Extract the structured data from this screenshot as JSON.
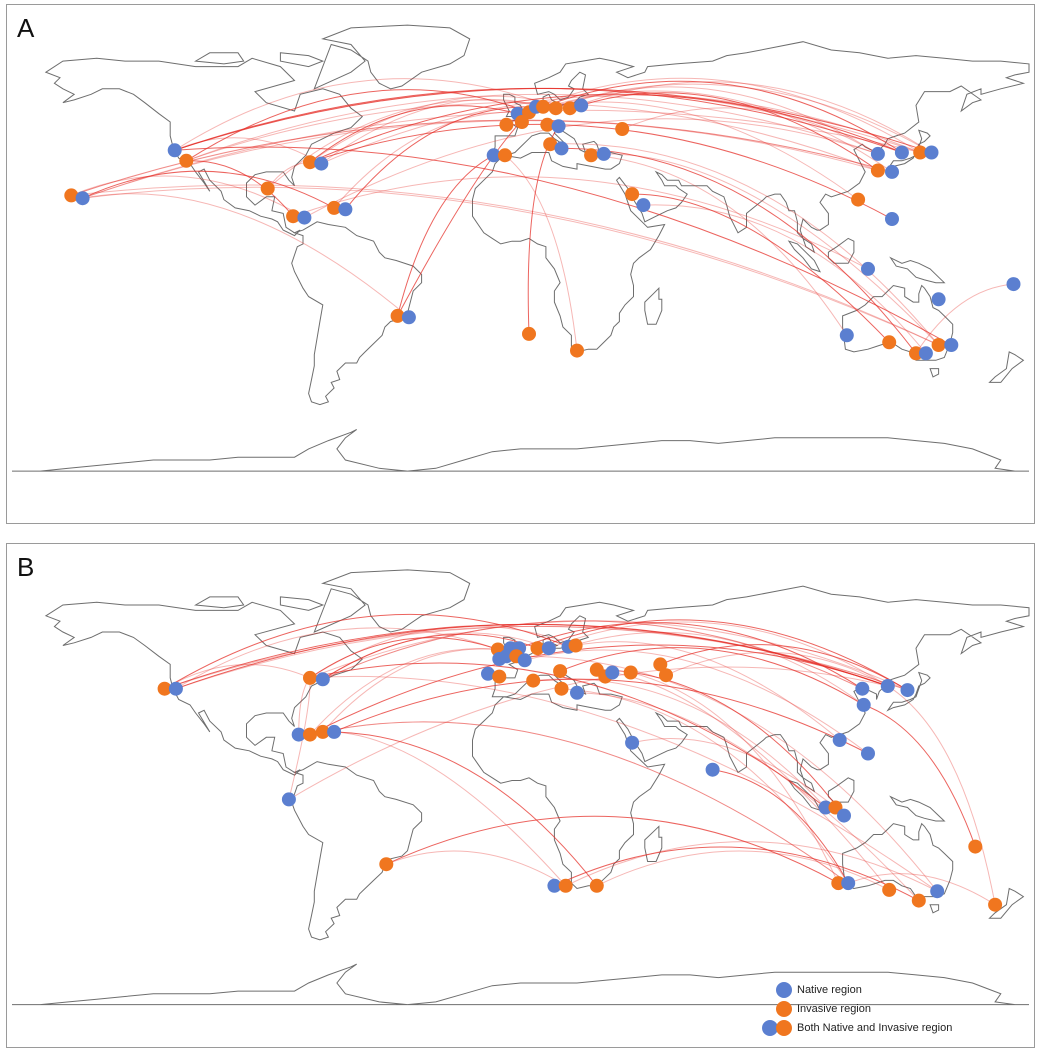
{
  "colors": {
    "native": "#5b7fd0",
    "invasive": "#f0761f",
    "route": "#e6302a",
    "land": "#6e6e6e",
    "border": "#9a9a9a"
  },
  "panels": [
    {
      "label": "A",
      "points": [
        {
          "lon": -122.4,
          "lat": 37.8,
          "type": "native"
        },
        {
          "lon": -118.3,
          "lat": 34.0,
          "type": "invasive"
        },
        {
          "lon": -159.0,
          "lat": 21.5,
          "type": "invasive"
        },
        {
          "lon": -155.0,
          "lat": 20.5,
          "type": "native"
        },
        {
          "lon": -89.5,
          "lat": 24.0,
          "type": "invasive"
        },
        {
          "lon": -80.5,
          "lat": 14.0,
          "type": "invasive"
        },
        {
          "lon": -76.5,
          "lat": 13.5,
          "type": "native"
        },
        {
          "lon": -66.0,
          "lat": 17.0,
          "type": "invasive"
        },
        {
          "lon": -62.0,
          "lat": 16.5,
          "type": "native"
        },
        {
          "lon": -74.5,
          "lat": 33.5,
          "type": "invasive"
        },
        {
          "lon": -70.5,
          "lat": 33.0,
          "type": "native"
        },
        {
          "lon": -43.5,
          "lat": -22.0,
          "type": "invasive"
        },
        {
          "lon": -39.5,
          "lat": -22.5,
          "type": "native"
        },
        {
          "lon": -9.5,
          "lat": 36.0,
          "type": "native"
        },
        {
          "lon": -5.5,
          "lat": 36.0,
          "type": "invasive"
        },
        {
          "lon": -5.0,
          "lat": 47.0,
          "type": "invasive"
        },
        {
          "lon": -1.0,
          "lat": 51.0,
          "type": "native"
        },
        {
          "lon": 0.5,
          "lat": 48.0,
          "type": "invasive"
        },
        {
          "lon": 3.0,
          "lat": 51.5,
          "type": "invasive"
        },
        {
          "lon": 5.5,
          "lat": 53.5,
          "type": "native"
        },
        {
          "lon": 8.0,
          "lat": 53.5,
          "type": "invasive"
        },
        {
          "lon": 9.5,
          "lat": 47.0,
          "type": "invasive"
        },
        {
          "lon": 12.5,
          "lat": 53.0,
          "type": "invasive"
        },
        {
          "lon": 17.5,
          "lat": 53.0,
          "type": "invasive"
        },
        {
          "lon": 21.5,
          "lat": 54.0,
          "type": "native"
        },
        {
          "lon": 13.5,
          "lat": 46.5,
          "type": "native"
        },
        {
          "lon": 10.5,
          "lat": 40.0,
          "type": "invasive"
        },
        {
          "lon": 14.5,
          "lat": 38.5,
          "type": "native"
        },
        {
          "lon": 25.0,
          "lat": 36.0,
          "type": "invasive"
        },
        {
          "lon": 29.5,
          "lat": 36.5,
          "type": "native"
        },
        {
          "lon": 36.0,
          "lat": 45.5,
          "type": "invasive"
        },
        {
          "lon": 39.5,
          "lat": 22.0,
          "type": "invasive"
        },
        {
          "lon": 43.5,
          "lat": 18.0,
          "type": "native"
        },
        {
          "lon": 3.0,
          "lat": -28.5,
          "type": "invasive"
        },
        {
          "lon": 20.0,
          "lat": -34.5,
          "type": "invasive"
        },
        {
          "lon": 119.5,
          "lat": 20.0,
          "type": "invasive"
        },
        {
          "lon": 126.5,
          "lat": 36.5,
          "type": "native"
        },
        {
          "lon": 126.5,
          "lat": 30.5,
          "type": "invasive"
        },
        {
          "lon": 131.5,
          "lat": 30.0,
          "type": "native"
        },
        {
          "lon": 135.0,
          "lat": 37.0,
          "type": "native"
        },
        {
          "lon": 141.5,
          "lat": 37.0,
          "type": "invasive"
        },
        {
          "lon": 145.5,
          "lat": 37.0,
          "type": "native"
        },
        {
          "lon": 131.5,
          "lat": 13.0,
          "type": "native"
        },
        {
          "lon": 123.0,
          "lat": -5.0,
          "type": "native"
        },
        {
          "lon": 148.0,
          "lat": -16.0,
          "type": "native"
        },
        {
          "lon": 115.5,
          "lat": -29.0,
          "type": "native"
        },
        {
          "lon": 130.5,
          "lat": -31.5,
          "type": "invasive"
        },
        {
          "lon": 140.0,
          "lat": -35.5,
          "type": "invasive"
        },
        {
          "lon": 143.5,
          "lat": -35.5,
          "type": "native"
        },
        {
          "lon": 148.0,
          "lat": -32.5,
          "type": "invasive"
        },
        {
          "lon": 152.5,
          "lat": -32.5,
          "type": "native"
        },
        {
          "lon": 174.5,
          "lat": -10.5,
          "type": "native"
        }
      ],
      "routes": [
        [
          -122.4,
          37.8,
          135.0,
          37.0
        ],
        [
          -122.4,
          37.8,
          141.5,
          37.0
        ],
        [
          -118.3,
          34.0,
          126.5,
          36.5
        ],
        [
          -118.3,
          34.0,
          3.0,
          51.5
        ],
        [
          -122.4,
          37.8,
          12.5,
          53.0
        ],
        [
          -70.5,
          33.0,
          8.0,
          53.5
        ],
        [
          -74.5,
          33.5,
          -1.0,
          51.0
        ],
        [
          -74.5,
          33.5,
          17.5,
          53.0
        ],
        [
          -70.5,
          33.0,
          141.5,
          37.0
        ],
        [
          -74.5,
          33.5,
          135.0,
          37.0
        ],
        [
          -66.0,
          17.0,
          3.0,
          51.5
        ],
        [
          -159.0,
          21.5,
          -76.5,
          13.5
        ],
        [
          -155.0,
          20.5,
          -66.0,
          17.0
        ],
        [
          -155.0,
          20.5,
          126.5,
          30.5
        ],
        [
          -159.0,
          21.5,
          131.5,
          30.0
        ],
        [
          -43.5,
          -22.0,
          5.5,
          53.5
        ],
        [
          -39.5,
          -22.5,
          -155.0,
          20.5
        ],
        [
          5.5,
          53.5,
          141.5,
          37.0
        ],
        [
          8.0,
          53.5,
          135.0,
          37.0
        ],
        [
          12.5,
          53.0,
          126.5,
          36.5
        ],
        [
          17.5,
          53.0,
          145.5,
          37.0
        ],
        [
          21.5,
          54.0,
          126.5,
          30.5
        ],
        [
          3.0,
          51.5,
          131.5,
          30.0
        ],
        [
          -1.0,
          51.0,
          119.5,
          20.0
        ],
        [
          14.5,
          38.5,
          140.0,
          -35.5
        ],
        [
          29.5,
          36.5,
          148.0,
          -32.5
        ],
        [
          25.0,
          36.0,
          115.5,
          -29.0
        ],
        [
          39.5,
          22.0,
          130.5,
          -31.5
        ],
        [
          43.5,
          18.0,
          143.5,
          -35.5
        ],
        [
          20.0,
          -34.5,
          -5.5,
          36.0
        ],
        [
          3.0,
          -28.5,
          13.5,
          46.5
        ],
        [
          126.5,
          30.5,
          -118.3,
          34.0
        ],
        [
          131.5,
          30.0,
          -159.0,
          21.5
        ],
        [
          145.5,
          37.0,
          -122.4,
          37.8
        ],
        [
          141.5,
          37.0,
          -155.0,
          20.5
        ],
        [
          148.0,
          -32.5,
          -159.0,
          21.5
        ],
        [
          152.5,
          -32.5,
          -122.4,
          37.8
        ],
        [
          174.5,
          -10.5,
          140.0,
          -35.5
        ],
        [
          123.0,
          -5.0,
          -80.5,
          14.0
        ],
        [
          131.5,
          13.0,
          -74.5,
          33.5
        ],
        [
          -89.5,
          24.0,
          8.0,
          53.5
        ],
        [
          -76.5,
          13.5,
          126.5,
          36.5
        ],
        [
          -62.0,
          16.5,
          5.5,
          53.5
        ],
        [
          36.0,
          45.5,
          126.5,
          36.5
        ],
        [
          10.5,
          40.0,
          148.0,
          -32.5
        ],
        [
          -9.5,
          36.0,
          -43.5,
          -22.0
        ],
        [
          -5.0,
          47.0,
          145.5,
          37.0
        ],
        [
          -155.0,
          20.5,
          148.0,
          -32.5
        ],
        [
          -118.3,
          34.0,
          -80.5,
          14.0
        ],
        [
          -122.4,
          37.8,
          -70.5,
          33.0
        ],
        [
          -89.5,
          24.0,
          -74.5,
          33.5
        ]
      ]
    },
    {
      "label": "B",
      "points": [
        {
          "lon": -126.0,
          "lat": 39.0,
          "type": "invasive"
        },
        {
          "lon": -122.0,
          "lat": 39.0,
          "type": "native"
        },
        {
          "lon": -74.5,
          "lat": 43.0,
          "type": "invasive"
        },
        {
          "lon": -70.0,
          "lat": 42.5,
          "type": "native"
        },
        {
          "lon": -78.5,
          "lat": 22.0,
          "type": "native"
        },
        {
          "lon": -74.5,
          "lat": 22.0,
          "type": "invasive"
        },
        {
          "lon": -70.0,
          "lat": 23.0,
          "type": "invasive"
        },
        {
          "lon": -66.0,
          "lat": 23.0,
          "type": "native"
        },
        {
          "lon": -82.0,
          "lat": -2.0,
          "type": "native"
        },
        {
          "lon": -47.5,
          "lat": -26.0,
          "type": "invasive"
        },
        {
          "lon": -8.0,
          "lat": 53.5,
          "type": "invasive"
        },
        {
          "lon": -3.5,
          "lat": 54.0,
          "type": "native"
        },
        {
          "lon": -0.5,
          "lat": 54.0,
          "type": "native"
        },
        {
          "lon": -7.5,
          "lat": 50.0,
          "type": "native"
        },
        {
          "lon": -5.0,
          "lat": 51.0,
          "type": "native"
        },
        {
          "lon": -1.5,
          "lat": 51.0,
          "type": "invasive"
        },
        {
          "lon": 1.5,
          "lat": 49.5,
          "type": "native"
        },
        {
          "lon": 6.0,
          "lat": 54.0,
          "type": "invasive"
        },
        {
          "lon": 10.0,
          "lat": 54.0,
          "type": "native"
        },
        {
          "lon": 17.0,
          "lat": 54.5,
          "type": "native"
        },
        {
          "lon": 19.5,
          "lat": 55.0,
          "type": "invasive"
        },
        {
          "lon": -11.5,
          "lat": 44.5,
          "type": "native"
        },
        {
          "lon": -7.5,
          "lat": 43.5,
          "type": "invasive"
        },
        {
          "lon": 4.5,
          "lat": 42.0,
          "type": "invasive"
        },
        {
          "lon": 14.0,
          "lat": 45.5,
          "type": "invasive"
        },
        {
          "lon": 14.5,
          "lat": 39.0,
          "type": "invasive"
        },
        {
          "lon": 27.0,
          "lat": 46.0,
          "type": "invasive"
        },
        {
          "lon": 30.0,
          "lat": 43.5,
          "type": "invasive"
        },
        {
          "lon": 39.0,
          "lat": 45.0,
          "type": "invasive"
        },
        {
          "lon": 49.5,
          "lat": 48.0,
          "type": "invasive"
        },
        {
          "lon": 51.5,
          "lat": 44.0,
          "type": "invasive"
        },
        {
          "lon": 20.0,
          "lat": 37.5,
          "type": "native"
        },
        {
          "lon": 32.5,
          "lat": 45.0,
          "type": "native"
        },
        {
          "lon": 39.5,
          "lat": 19.0,
          "type": "native"
        },
        {
          "lon": 68.0,
          "lat": 9.0,
          "type": "native"
        },
        {
          "lon": 12.0,
          "lat": -34.0,
          "type": "native"
        },
        {
          "lon": 16.0,
          "lat": -34.0,
          "type": "invasive"
        },
        {
          "lon": 27.0,
          "lat": -34.0,
          "type": "invasive"
        },
        {
          "lon": 121.0,
          "lat": 39.0,
          "type": "native"
        },
        {
          "lon": 121.5,
          "lat": 33.0,
          "type": "native"
        },
        {
          "lon": 130.0,
          "lat": 40.0,
          "type": "native"
        },
        {
          "lon": 137.0,
          "lat": 38.5,
          "type": "native"
        },
        {
          "lon": 113.0,
          "lat": 20.0,
          "type": "native"
        },
        {
          "lon": 123.0,
          "lat": 15.0,
          "type": "native"
        },
        {
          "lon": 108.0,
          "lat": -5.0,
          "type": "native"
        },
        {
          "lon": 111.5,
          "lat": -5.0,
          "type": "invasive"
        },
        {
          "lon": 114.5,
          "lat": -8.0,
          "type": "native"
        },
        {
          "lon": 112.5,
          "lat": -33.0,
          "type": "invasive"
        },
        {
          "lon": 116.0,
          "lat": -33.0,
          "type": "native"
        },
        {
          "lon": 130.5,
          "lat": -35.5,
          "type": "invasive"
        },
        {
          "lon": 141.0,
          "lat": -39.5,
          "type": "invasive"
        },
        {
          "lon": 147.5,
          "lat": -36.0,
          "type": "native"
        },
        {
          "lon": 161.0,
          "lat": -19.5,
          "type": "invasive"
        },
        {
          "lon": 168.0,
          "lat": -41.0,
          "type": "invasive"
        }
      ],
      "routes": [
        [
          -122.0,
          39.0,
          130.0,
          40.0
        ],
        [
          -126.0,
          39.0,
          137.0,
          38.5
        ],
        [
          -122.0,
          39.0,
          -1.5,
          51.0
        ],
        [
          -126.0,
          39.0,
          17.0,
          54.5
        ],
        [
          -74.5,
          43.0,
          137.0,
          38.5
        ],
        [
          -70.0,
          42.5,
          121.0,
          39.0
        ],
        [
          -74.5,
          43.0,
          -8.0,
          53.5
        ],
        [
          -70.0,
          42.5,
          10.0,
          54.0
        ],
        [
          -74.5,
          43.0,
          19.5,
          55.0
        ],
        [
          -70.0,
          42.5,
          6.0,
          54.0
        ],
        [
          -74.5,
          43.0,
          -82.0,
          -2.0
        ],
        [
          -74.5,
          43.0,
          -126.0,
          39.0
        ],
        [
          -70.0,
          23.0,
          27.0,
          -34.0
        ],
        [
          -66.0,
          23.0,
          16.0,
          -34.0
        ],
        [
          -70.0,
          23.0,
          -8.0,
          53.5
        ],
        [
          -74.5,
          22.0,
          130.0,
          40.0
        ],
        [
          -78.5,
          22.0,
          -74.5,
          43.0
        ],
        [
          -47.5,
          -26.0,
          16.0,
          -34.0
        ],
        [
          -47.5,
          -26.0,
          112.5,
          -33.0
        ],
        [
          -70.0,
          23.0,
          116.0,
          -33.0
        ],
        [
          10.0,
          54.0,
          130.0,
          40.0
        ],
        [
          6.0,
          54.0,
          137.0,
          38.5
        ],
        [
          17.0,
          54.5,
          121.5,
          33.0
        ],
        [
          19.5,
          55.0,
          113.0,
          20.0
        ],
        [
          -0.5,
          54.0,
          121.0,
          39.0
        ],
        [
          1.5,
          49.5,
          123.0,
          15.0
        ],
        [
          4.5,
          42.0,
          108.0,
          -5.0
        ],
        [
          14.0,
          45.5,
          121.5,
          33.0
        ],
        [
          14.5,
          39.0,
          116.0,
          -33.0
        ],
        [
          20.0,
          37.5,
          141.0,
          -39.5
        ],
        [
          27.0,
          46.0,
          114.5,
          -8.0
        ],
        [
          32.5,
          45.0,
          130.5,
          -35.5
        ],
        [
          39.0,
          45.0,
          112.5,
          -33.0
        ],
        [
          49.5,
          48.0,
          137.0,
          38.5
        ],
        [
          51.5,
          44.0,
          130.0,
          40.0
        ],
        [
          39.5,
          19.0,
          111.5,
          -5.0
        ],
        [
          68.0,
          9.0,
          116.0,
          -33.0
        ],
        [
          16.0,
          -34.0,
          147.5,
          -36.0
        ],
        [
          27.0,
          -34.0,
          130.5,
          -35.5
        ],
        [
          12.0,
          -34.0,
          141.0,
          -39.5
        ],
        [
          130.0,
          40.0,
          168.0,
          -41.0
        ],
        [
          137.0,
          38.5,
          -122.0,
          39.0
        ],
        [
          130.0,
          40.0,
          -126.0,
          39.0
        ],
        [
          121.0,
          39.0,
          -70.0,
          42.5
        ],
        [
          147.5,
          -36.0,
          -74.5,
          43.0
        ],
        [
          161.0,
          -19.5,
          121.5,
          33.0
        ],
        [
          168.0,
          -41.0,
          116.0,
          -33.0
        ],
        [
          -82.0,
          -2.0,
          130.0,
          40.0
        ],
        [
          -66.0,
          23.0,
          123.0,
          15.0
        ],
        [
          -8.0,
          53.5,
          -74.5,
          22.0
        ],
        [
          -1.5,
          51.0,
          147.5,
          -36.0
        ],
        [
          108.0,
          -5.0,
          -74.5,
          43.0
        ],
        [
          116.0,
          -33.0,
          -70.0,
          23.0
        ]
      ]
    }
  ],
  "legend": {
    "native": "Native region",
    "invasive": "Invasive region",
    "both": "Both Native and Invasive region"
  }
}
